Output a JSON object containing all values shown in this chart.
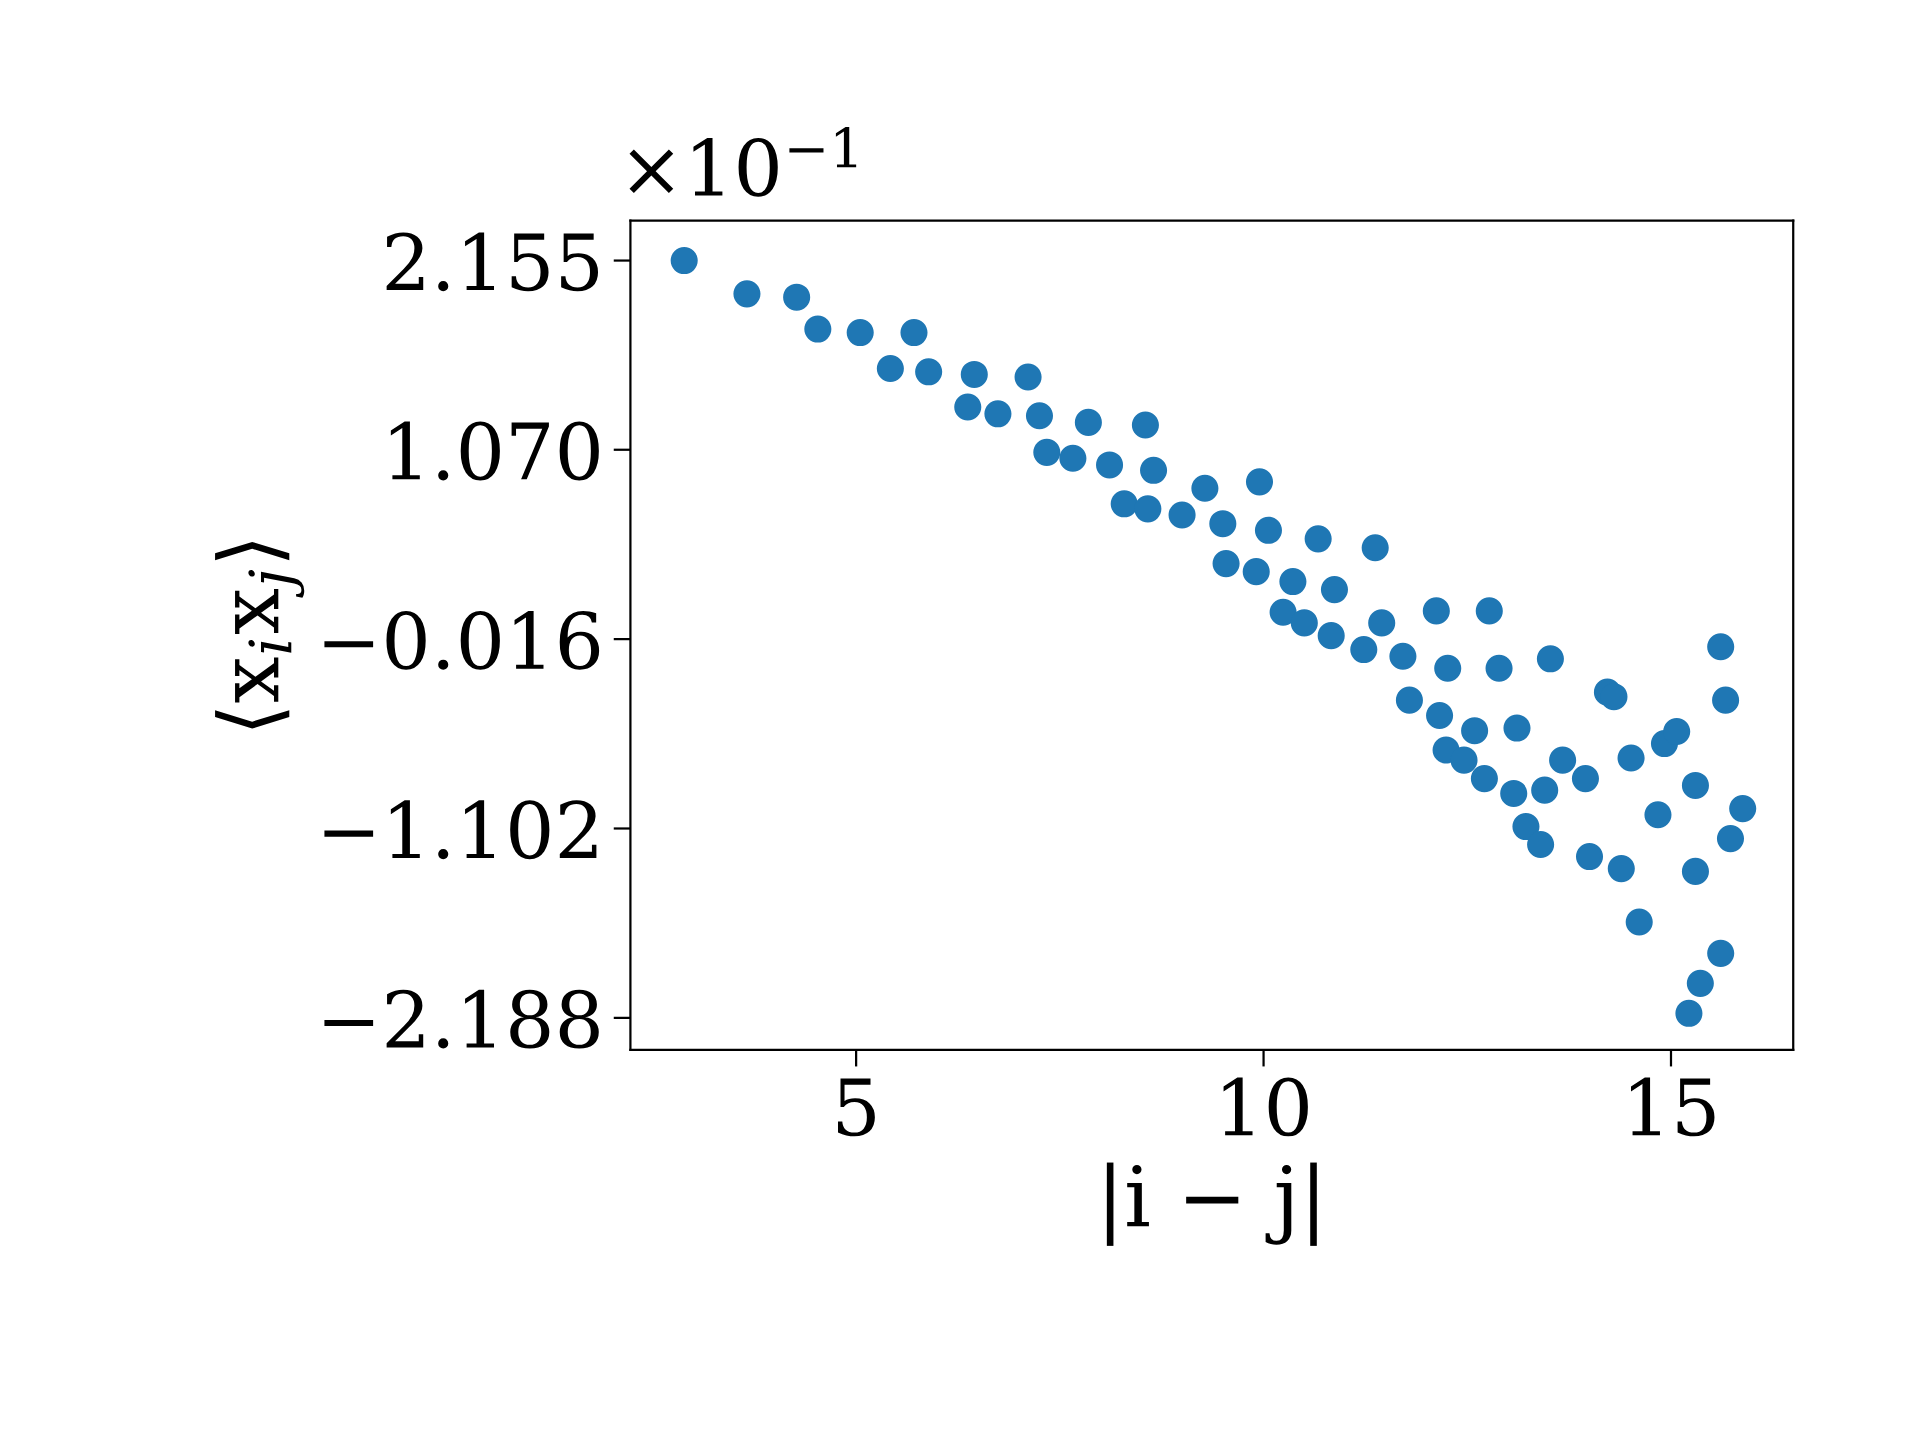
{
  "chart_data": {
    "type": "scatter",
    "xlabel": "|i − j|",
    "ylabel": "⟨x$_{i}$x$_{j}$⟩",
    "annotations": [
      "×10$^{−1}$"
    ],
    "x": [
      2.89,
      3.66,
      4.27,
      4.53,
      5.05,
      5.71,
      5.42,
      5.89,
      6.45,
      7.11,
      6.37,
      6.74,
      7.25,
      7.85,
      8.55,
      7.34,
      7.66,
      8.11,
      8.65,
      8.29,
      8.58,
      9.0,
      9.28,
      9.95,
      9.5,
      10.06,
      9.54,
      9.91,
      10.67,
      11.37,
      10.36,
      10.87,
      10.24,
      10.5,
      10.83,
      11.23,
      11.45,
      12.12,
      12.77,
      11.71,
      12.26,
      12.89,
      13.52,
      11.79,
      12.16,
      12.59,
      13.11,
      12.24,
      12.46,
      12.71,
      13.07,
      13.45,
      13.67,
      13.95,
      13.22,
      13.4,
      14.0,
      14.39,
      14.22,
      14.3,
      14.51,
      14.92,
      15.07,
      14.84,
      15.3,
      14.61,
      15.3,
      15.61,
      15.67,
      15.88,
      15.73,
      15.61,
      15.36,
      15.22
    ],
    "series": [
      {
        "color": "#1f77b4",
        "values": [
          2.155,
          1.964,
          1.945,
          1.762,
          1.742,
          1.742,
          1.536,
          1.517,
          1.502,
          1.487,
          1.315,
          1.276,
          1.265,
          1.227,
          1.212,
          1.055,
          1.021,
          0.983,
          0.952,
          0.76,
          0.731,
          0.696,
          0.849,
          0.886,
          0.646,
          0.608,
          0.417,
          0.371,
          0.559,
          0.508,
          0.314,
          0.268,
          0.138,
          0.077,
          0.004,
          -0.076,
          0.077,
          0.146,
          0.146,
          -0.114,
          -0.183,
          -0.183,
          -0.129,
          -0.366,
          -0.454,
          -0.541,
          -0.526,
          -0.652,
          -0.71,
          -0.816,
          -0.901,
          -0.882,
          -0.71,
          -0.816,
          -1.091,
          -1.194,
          -1.263,
          -1.332,
          -0.32,
          -0.346,
          -0.698,
          -0.615,
          -0.546,
          -1.023,
          -0.855,
          -1.638,
          -1.348,
          -0.06,
          -0.366,
          -0.988,
          -1.16,
          -1.818,
          -1.99,
          -2.162
        ]
      }
    ],
    "xlim": [
      2.23,
      16.5
    ],
    "xticks": [
      5,
      10,
      15
    ],
    "ylim": [
      -2.371,
      2.384
    ],
    "yticks": [
      {
        "value": 2.155,
        "label": "2.155"
      },
      {
        "value": 1.07,
        "label": "1.070"
      },
      {
        "value": -0.016,
        "label": "−0.016"
      },
      {
        "value": -1.102,
        "label": "−1.102"
      },
      {
        "value": -2.188,
        "label": "−2.188"
      }
    ],
    "marker": "circle",
    "grid": false
  }
}
